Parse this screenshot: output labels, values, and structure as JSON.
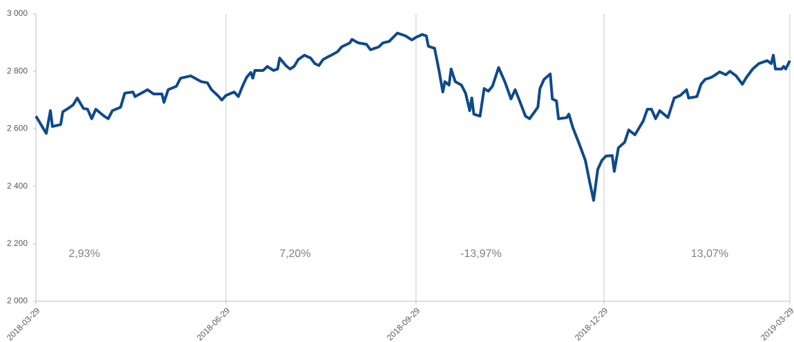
{
  "chart_data": {
    "type": "line",
    "x": [
      "2018-03-29",
      "2018-04-03",
      "2018-04-05",
      "2018-04-06",
      "2018-04-10",
      "2018-04-11",
      "2018-04-13",
      "2018-04-16",
      "2018-04-18",
      "2018-04-21",
      "2018-04-23",
      "2018-04-25",
      "2018-04-27",
      "2018-05-01",
      "2018-05-03",
      "2018-05-05",
      "2018-05-09",
      "2018-05-11",
      "2018-05-15",
      "2018-05-16",
      "2018-05-19",
      "2018-05-22",
      "2018-05-25",
      "2018-05-29",
      "2018-05-30",
      "2018-06-01",
      "2018-06-05",
      "2018-06-07",
      "2018-06-12",
      "2018-06-15",
      "2018-06-17",
      "2018-06-20",
      "2018-06-22",
      "2018-06-25",
      "2018-06-27",
      "2018-06-29",
      "2018-07-03",
      "2018-07-05",
      "2018-07-07",
      "2018-07-09",
      "2018-07-11",
      "2018-07-12",
      "2018-07-13",
      "2018-07-17",
      "2018-07-19",
      "2018-07-22",
      "2018-07-24",
      "2018-07-25",
      "2018-07-28",
      "2018-07-30",
      "2018-08-01",
      "2018-08-03",
      "2018-08-06",
      "2018-08-09",
      "2018-08-11",
      "2018-08-13",
      "2018-08-15",
      "2018-08-17",
      "2018-08-19",
      "2018-08-22",
      "2018-08-24",
      "2018-08-28",
      "2018-08-29",
      "2018-09-01",
      "2018-09-05",
      "2018-09-07",
      "2018-09-11",
      "2018-09-13",
      "2018-09-16",
      "2018-09-20",
      "2018-09-24",
      "2018-09-27",
      "2018-09-29",
      "2018-10-02",
      "2018-10-04",
      "2018-10-05",
      "2018-10-08",
      "2018-10-10",
      "2018-10-12",
      "2018-10-13",
      "2018-10-15",
      "2018-10-16",
      "2018-10-18",
      "2018-10-21",
      "2018-10-23",
      "2018-10-25",
      "2018-10-26",
      "2018-10-27",
      "2018-10-30",
      "2018-11-01",
      "2018-11-03",
      "2018-11-05",
      "2018-11-08",
      "2018-11-11",
      "2018-11-14",
      "2018-11-16",
      "2018-11-18",
      "2018-11-21",
      "2018-11-23",
      "2018-11-27",
      "2018-11-28",
      "2018-11-30",
      "2018-12-03",
      "2018-12-04",
      "2018-12-06",
      "2018-12-07",
      "2018-12-11",
      "2018-12-12",
      "2018-12-14",
      "2018-12-17",
      "2018-12-20",
      "2018-12-22",
      "2018-12-24",
      "2018-12-26",
      "2018-12-28",
      "2018-12-30",
      "2019-01-02",
      "2019-01-03",
      "2019-01-05",
      "2019-01-08",
      "2019-01-10",
      "2019-01-13",
      "2019-01-15",
      "2019-01-17",
      "2019-01-19",
      "2019-01-21",
      "2019-01-23",
      "2019-01-25",
      "2019-01-29",
      "2019-02-01",
      "2019-02-04",
      "2019-02-07",
      "2019-02-08",
      "2019-02-12",
      "2019-02-14",
      "2019-02-16",
      "2019-02-19",
      "2019-02-21",
      "2019-02-23",
      "2019-02-26",
      "2019-02-28",
      "2019-03-03",
      "2019-03-06",
      "2019-03-08",
      "2019-03-11",
      "2019-03-14",
      "2019-03-18",
      "2019-03-20",
      "2019-03-21",
      "2019-03-22",
      "2019-03-25",
      "2019-03-26",
      "2019-03-27",
      "2019-03-29"
    ],
    "series": [
      {
        "color": "#0e4a8c",
        "values": [
          2644,
          2584,
          2663,
          2608,
          2615,
          2659,
          2668,
          2683,
          2707,
          2671,
          2668,
          2635,
          2668,
          2644,
          2635,
          2663,
          2675,
          2724,
          2728,
          2712,
          2724,
          2736,
          2721,
          2721,
          2692,
          2736,
          2748,
          2776,
          2784,
          2772,
          2764,
          2760,
          2736,
          2716,
          2700,
          2716,
          2728,
          2712,
          2748,
          2779,
          2796,
          2776,
          2803,
          2803,
          2817,
          2803,
          2808,
          2846,
          2820,
          2808,
          2817,
          2841,
          2856,
          2846,
          2827,
          2820,
          2841,
          2849,
          2856,
          2868,
          2885,
          2899,
          2911,
          2899,
          2894,
          2875,
          2885,
          2899,
          2904,
          2933,
          2923,
          2909,
          2918,
          2928,
          2923,
          2887,
          2880,
          2808,
          2728,
          2764,
          2752,
          2808,
          2764,
          2752,
          2724,
          2663,
          2707,
          2651,
          2644,
          2740,
          2731,
          2748,
          2813,
          2764,
          2704,
          2736,
          2700,
          2644,
          2635,
          2675,
          2740,
          2772,
          2791,
          2704,
          2697,
          2635,
          2639,
          2651,
          2603,
          2548,
          2490,
          2418,
          2351,
          2459,
          2490,
          2505,
          2507,
          2452,
          2534,
          2553,
          2596,
          2579,
          2603,
          2627,
          2668,
          2668,
          2635,
          2663,
          2639,
          2707,
          2716,
          2736,
          2707,
          2712,
          2755,
          2772,
          2779,
          2788,
          2798,
          2788,
          2800,
          2784,
          2755,
          2779,
          2808,
          2827,
          2837,
          2827,
          2856,
          2808,
          2808,
          2817,
          2808,
          2837
        ]
      }
    ],
    "xlim": [
      "2018-03-29",
      "2019-03-29"
    ],
    "xticks": [
      "2018-03-29",
      "2018-06-29",
      "2018-09-29",
      "2018-12-29",
      "2019-03-29"
    ],
    "ylim": [
      2000,
      3000
    ],
    "yticks": [
      {
        "value": 2000,
        "label": "2 000"
      },
      {
        "value": 2200,
        "label": "2 200"
      },
      {
        "value": 2400,
        "label": "2 400"
      },
      {
        "value": 2600,
        "label": "2 600"
      },
      {
        "value": 2800,
        "label": "2 800"
      },
      {
        "value": 3000,
        "label": "3 000"
      }
    ],
    "annotations": [
      "2,93%",
      "7,20%",
      "-13,97%",
      "13,07%"
    ],
    "grid": true
  }
}
